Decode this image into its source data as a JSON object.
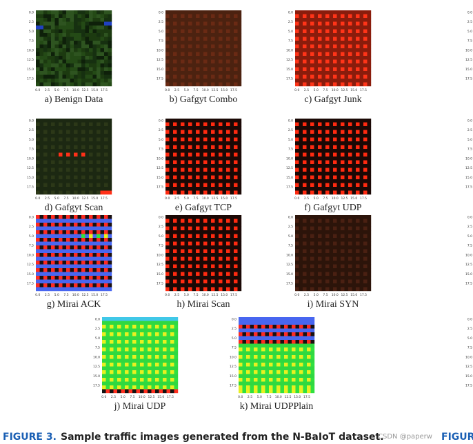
{
  "panels": [
    {
      "caption": "a) Benign Data"
    },
    {
      "caption": "b) Gafgyt Combo"
    },
    {
      "caption": "c) Gafgyt Junk"
    },
    {
      "caption": "d) Gafgyt Scan"
    },
    {
      "caption": "e) Gafgyt TCP"
    },
    {
      "caption": "f) Gafgyt UDP"
    },
    {
      "caption": "g) Mirai ACK"
    },
    {
      "caption": "h) Mirai Scan"
    },
    {
      "caption": "i) Mirai SYN"
    },
    {
      "caption": "j) Mirai UDP"
    },
    {
      "caption": "k) Mirai UDPPlain"
    }
  ],
  "ticks": [
    "0.0",
    "2.5",
    "5.0",
    "7.5",
    "10.0",
    "12.5",
    "15.0",
    "17.5"
  ],
  "figure_caption": {
    "label": "FIGURE 3.",
    "text": "Sample traffic images generated from the N-BaIoT dataset."
  },
  "watermark": "CSDN @paperw",
  "edge_label": "FIGUR"
}
